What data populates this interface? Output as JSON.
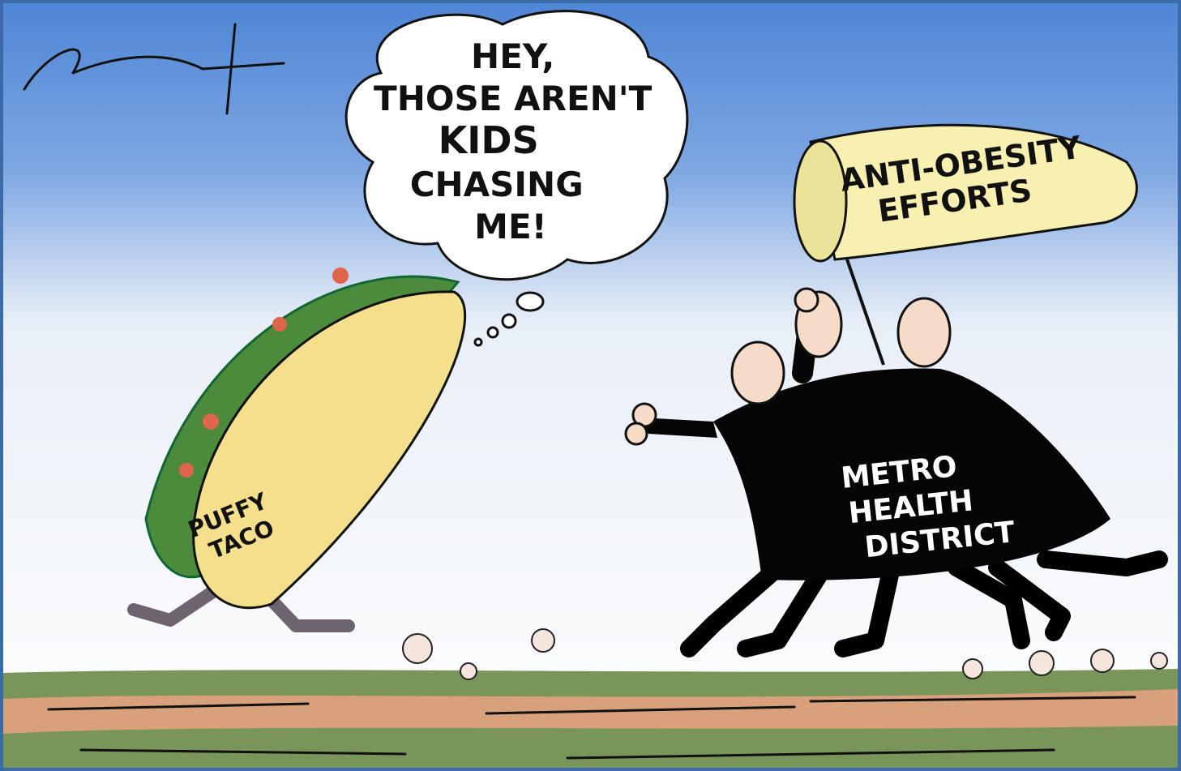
{
  "thought_bubble": {
    "lines": [
      "HEY,",
      "THOSE AREN'T",
      "KIDS",
      "CHASING",
      "ME!"
    ]
  },
  "net_label": {
    "lines": [
      "ANTI-OBESITY",
      "EFFORTS"
    ]
  },
  "taco_label": {
    "lines": [
      "PUFFY",
      "TACO"
    ]
  },
  "cloak_label": {
    "lines": [
      "METRO",
      "HEALTH",
      "DISTRICT"
    ]
  }
}
